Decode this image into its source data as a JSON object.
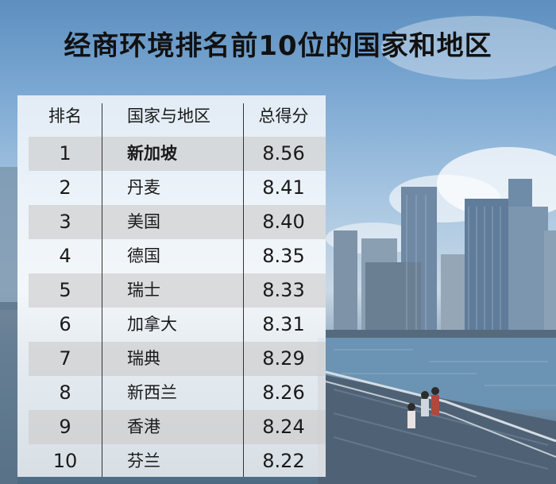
{
  "title": "经商环境排名前10位的国家和地区",
  "table": {
    "headers": {
      "rank": "排名",
      "name": "国家与地区",
      "score": "总得分"
    },
    "rows": [
      {
        "rank": "1",
        "name": "新加坡",
        "score": "8.56"
      },
      {
        "rank": "2",
        "name": "丹麦",
        "score": "8.41"
      },
      {
        "rank": "3",
        "name": "美国",
        "score": "8.40"
      },
      {
        "rank": "4",
        "name": "德国",
        "score": "8.35"
      },
      {
        "rank": "5",
        "name": "瑞士",
        "score": "8.33"
      },
      {
        "rank": "6",
        "name": "加拿大",
        "score": "8.31"
      },
      {
        "rank": "7",
        "name": "瑞典",
        "score": "8.29"
      },
      {
        "rank": "8",
        "name": "新西兰",
        "score": "8.26"
      },
      {
        "rank": "9",
        "name": "香港",
        "score": "8.24"
      },
      {
        "rank": "10",
        "name": "芬兰",
        "score": "8.22"
      }
    ]
  }
}
